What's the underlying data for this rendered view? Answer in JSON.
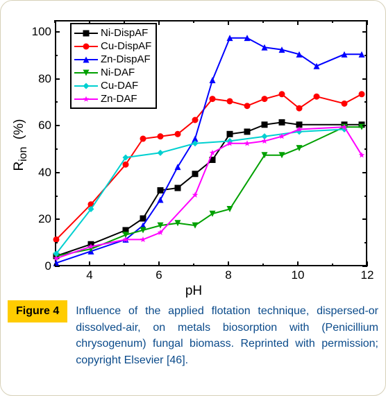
{
  "figure": {
    "tag": "Figure 4",
    "caption": "Influence of the applied flotation technique, dispersed-or dissolved-air, on metals biosorption with (Penicillium chrysogenum) fungal biomass. Reprinted with permission; copyright Elsevier [46]."
  },
  "chart": {
    "type": "line",
    "xlabel": "pH",
    "ylabel_html": "R<sub>ion</sub>&nbsp;&nbsp;(%)",
    "xlim": [
      3,
      12
    ],
    "ylim": [
      0,
      105
    ],
    "ytick_step": 20,
    "xtick_step": 2,
    "tick_len_major": 7,
    "tick_len_minor": 4,
    "tick_color": "#000000",
    "axis_color": "#000000",
    "background_color": "#ffffff",
    "label_fontsize": 19,
    "tick_fontsize": 17,
    "line_width": 2,
    "marker_size": 9,
    "legend": {
      "border_color": "#000000",
      "fontsize": 15
    },
    "series": [
      {
        "name": "Ni-DispAF",
        "color": "#000000",
        "marker": "square",
        "x": [
          3,
          4,
          5,
          5.5,
          6,
          6.5,
          7,
          7.5,
          8,
          8.5,
          9,
          9.5,
          10,
          11.3,
          11.8
        ],
        "y": [
          5,
          10,
          16,
          21,
          33,
          34,
          40,
          46,
          57,
          58,
          61,
          62,
          61,
          61,
          61
        ]
      },
      {
        "name": "Cu-DispAF",
        "color": "#ff0000",
        "marker": "circle",
        "x": [
          3,
          4,
          5,
          5.5,
          6,
          6.5,
          7,
          7.5,
          8,
          8.5,
          9,
          9.5,
          10,
          10.5,
          11.3,
          11.8
        ],
        "y": [
          12,
          27,
          44,
          55,
          56,
          57,
          63,
          72,
          71,
          69,
          72,
          74,
          68,
          73,
          70,
          74
        ]
      },
      {
        "name": "Zn-DispAF",
        "color": "#0000ff",
        "marker": "triangle-up",
        "x": [
          3,
          4,
          5,
          5.5,
          6,
          6.5,
          7,
          7.5,
          8,
          8.5,
          9,
          9.5,
          10,
          10.5,
          11.3,
          11.8
        ],
        "y": [
          2,
          7,
          12,
          18,
          29,
          43,
          55,
          80,
          98,
          98,
          94,
          93,
          91,
          86,
          91,
          91
        ]
      },
      {
        "name": "Ni-DAF",
        "color": "#00a000",
        "marker": "triangle-down",
        "x": [
          3,
          4,
          5,
          5.5,
          6,
          6.5,
          7,
          7.5,
          8,
          9,
          9.5,
          10,
          11.3,
          11.8
        ],
        "y": [
          5,
          8,
          14,
          16,
          18,
          19,
          18,
          23,
          25,
          48,
          48,
          51,
          60,
          60
        ]
      },
      {
        "name": "Cu-DAF",
        "color": "#00d0d0",
        "marker": "diamond",
        "x": [
          3,
          4,
          5,
          6,
          7,
          8,
          9,
          10,
          11.3
        ],
        "y": [
          6,
          25,
          47,
          49,
          53,
          54,
          56,
          58,
          59
        ]
      },
      {
        "name": "Zn-DAF",
        "color": "#ff00ff",
        "marker": "star",
        "x": [
          3,
          4,
          5,
          5.5,
          6,
          7,
          7.5,
          8,
          8.5,
          9,
          9.5,
          10,
          11.3,
          11.8
        ],
        "y": [
          4,
          9,
          12,
          12,
          15,
          31,
          49,
          53,
          53,
          54,
          56,
          59,
          60,
          48
        ]
      }
    ]
  },
  "colors": {
    "container_border": "#d6d0b8",
    "figtag_bg": "#ffcc00",
    "caption_text": "#0a4a8a"
  }
}
